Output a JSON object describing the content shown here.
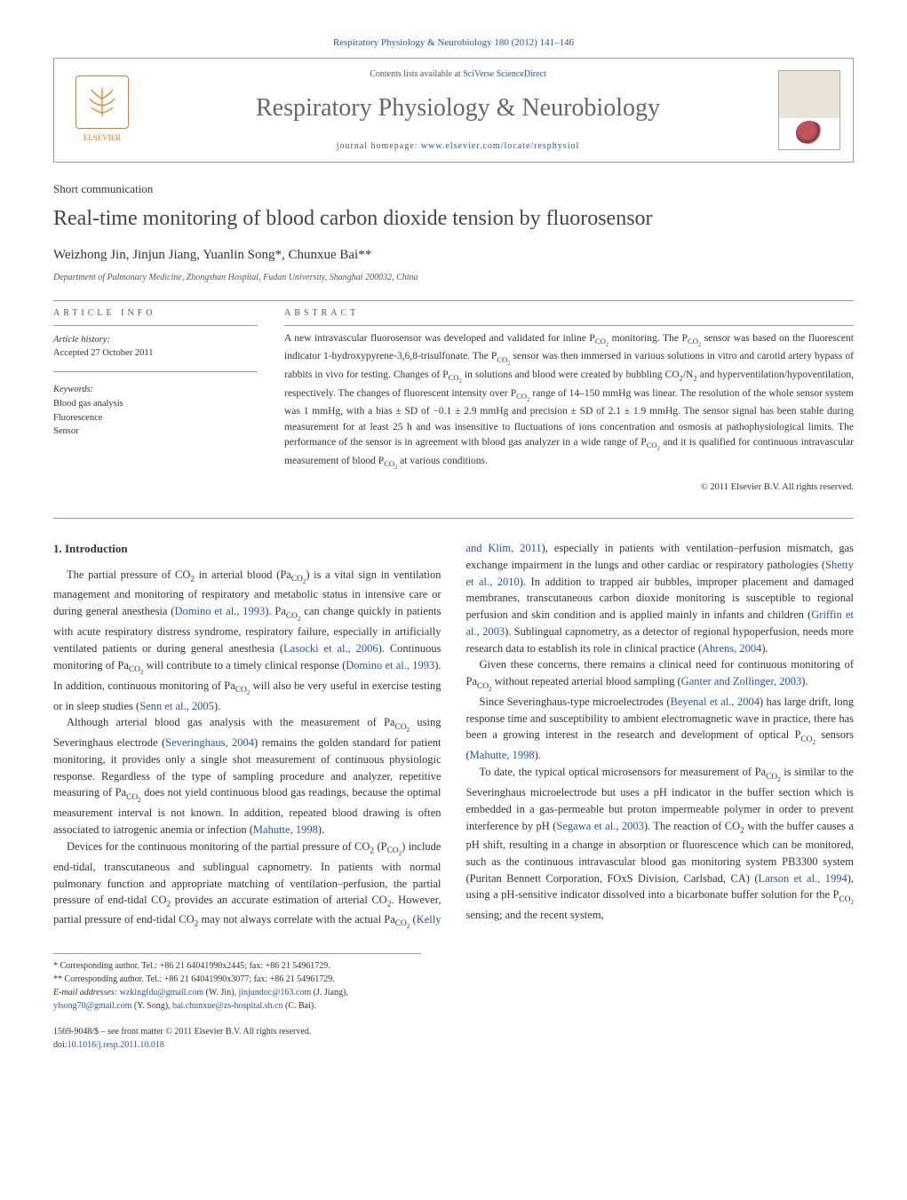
{
  "header": {
    "citation": "Respiratory Physiology & Neurobiology 180 (2012) 141–146",
    "contents_prefix": "Contents lists available at ",
    "contents_link": "SciVerse ScienceDirect",
    "journal_title": "Respiratory Physiology & Neurobiology",
    "homepage_prefix": "journal homepage: ",
    "homepage_url": "www.elsevier.com/locate/resphysiol",
    "publisher": "ELSEVIER"
  },
  "article": {
    "type": "Short communication",
    "title": "Real-time monitoring of blood carbon dioxide tension by fluorosensor",
    "authors_html": "Weizhong Jin, Jinjun Jiang, Yuanlin Song*, Chunxue Bai**",
    "affiliation": "Department of Pulmonary Medicine, Zhongshan Hospital, Fudan University, Shanghai 200032, China"
  },
  "info": {
    "heading": "ARTICLE INFO",
    "history_label": "Article history:",
    "accepted": "Accepted 27 October 2011",
    "keywords_label": "Keywords:",
    "keywords": [
      "Blood gas analysis",
      "Fluorescence",
      "Sensor"
    ]
  },
  "abstract": {
    "heading": "ABSTRACT",
    "text": "A new intravascular fluorosensor was developed and validated for inline P_CO2 monitoring. The P_CO2 sensor was based on the fluorescent indicator 1-hydroxypyrene-3,6,8-trisulfonate. The P_CO2 sensor was then immersed in various solutions in vitro and carotid artery bypass of rabbits in vivo for testing. Changes of P_CO2 in solutions and blood were created by bubbling CO2/N2 and hyperventilation/hypoventilation, respectively. The changes of fluorescent intensity over P_CO2 range of 14–150 mmHg was linear. The resolution of the whole sensor system was 1 mmHg, with a bias ± SD of −0.1 ± 2.9 mmHg and precision ± SD of 2.1 ± 1.9 mmHg. The sensor signal has been stable during measurement for at least 25 h and was insensitive to fluctuations of ions concentration and osmosis at pathophysiological limits. The performance of the sensor is in agreement with blood gas analyzer in a wide range of P_CO2 and it is qualified for continuous intravascular measurement of blood P_CO2 at various conditions.",
    "copyright": "© 2011 Elsevier B.V. All rights reserved."
  },
  "body": {
    "section_heading": "1. Introduction",
    "paragraphs": [
      "The partial pressure of CO2 in arterial blood (Pa_CO2) is a vital sign in ventilation management and monitoring of respiratory and metabolic status in intensive care or during general anesthesia (Domino et al., 1993). Pa_CO2 can change quickly in patients with acute respiratory distress syndrome, respiratory failure, especially in artificially ventilated patients or during general anesthesia (Lasocki et al., 2006). Continuous monitoring of Pa_CO2 will contribute to a timely clinical response (Domino et al., 1993). In addition, continuous monitoring of Pa_CO2 will also be very useful in exercise testing or in sleep studies (Senn et al., 2005).",
      "Although arterial blood gas analysis with the measurement of Pa_CO2 using Severinghaus electrode (Severinghaus, 2004) remains the golden standard for patient monitoring, it provides only a single shot measurement of continuous physiologic response. Regardless of the type of sampling procedure and analyzer, repetitive measuring of Pa_CO2 does not yield continuous blood gas readings, because the optimal measurement interval is not known. In addition, repeated blood drawing is often associated to iatrogenic anemia or infection (Mahutte, 1998).",
      "Devices for the continuous monitoring of the partial pressure of CO2 (P_CO2) include end-tidal, transcutaneous and sublingual capnometry. In patients with normal pulmonary function and appropriate matching of ventilation–perfusion, the partial pressure of end-tidal CO2 provides an accurate estimation of arterial CO2. However, partial pressure of end-tidal CO2 may not always correlate with the actual Pa_CO2 (Kelly and Klim, 2011), especially in patients with ventilation–perfusion mismatch, gas exchange impairment in the lungs and other cardiac or respiratory pathologies (Shetty et al., 2010). In addition to trapped air bubbles, improper placement and damaged membranes, transcutaneous carbon dioxide monitoring is susceptible to regional perfusion and skin condition and is applied mainly in infants and children (Griffin et al., 2003). Sublingual capnometry, as a detector of regional hypoperfusion, needs more research data to establish its role in clinical practice (Ahrens, 2004).",
      "Given these concerns, there remains a clinical need for continuous monitoring of Pa_CO2 without repeated arterial blood sampling (Ganter and Zollinger, 2003).",
      "Since Severinghaus-type microelectrodes (Beyenal et al., 2004) has large drift, long response time and susceptibility to ambient electromagnetic wave in practice, there has been a growing interest in the research and development of optical P_CO2 sensors (Mahutte, 1998).",
      "To date, the typical optical microsensors for measurement of Pa_CO2 is similar to the Severinghaus microelectrode but uses a pH indicator in the buffer section which is embedded in a gas-permeable but proton impermeable polymer in order to prevent interference by pH (Segawa et al., 2003). The reaction of CO2 with the buffer causes a pH shift, resulting in a change in absorption or fluorescence which can be monitored, such as the continuous intravascular blood gas monitoring system PB3300 system (Puritan Bennett Corporation, FOxS Division, Carlsbad, CA) (Larson et al., 1994), using a pH-sensitive indicator dissolved into a bicarbonate buffer solution for the P_CO2 sensing; and the recent system,"
    ]
  },
  "footnotes": {
    "corr1": "* Corresponding author. Tel.: +86 21 64041990x2445; fax: +86 21 54961729.",
    "corr2": "** Corresponding author. Tel.: +86 21 64041990x3077; fax: +86 21 54961729.",
    "emails_label": "E-mail addresses: ",
    "emails": [
      {
        "addr": "wzkingfdu@gmail.com",
        "who": " (W. Jin), "
      },
      {
        "addr": "jinjundoc@163.com",
        "who": " (J. Jiang), "
      },
      {
        "addr": "ylsong70@gmail.com",
        "who": " (Y. Song), "
      },
      {
        "addr": "bai.chunxue@zs-hospital.sh.cn",
        "who": " (C. Bai)."
      }
    ]
  },
  "footer": {
    "issn": "1569-9048/$ – see front matter © 2011 Elsevier B.V. All rights reserved.",
    "doi_label": "doi:",
    "doi": "10.1016/j.resp.2011.10.018"
  },
  "colors": {
    "link": "#2456a8",
    "elsevier": "#e67817",
    "text": "#333333",
    "rule": "#999999"
  }
}
